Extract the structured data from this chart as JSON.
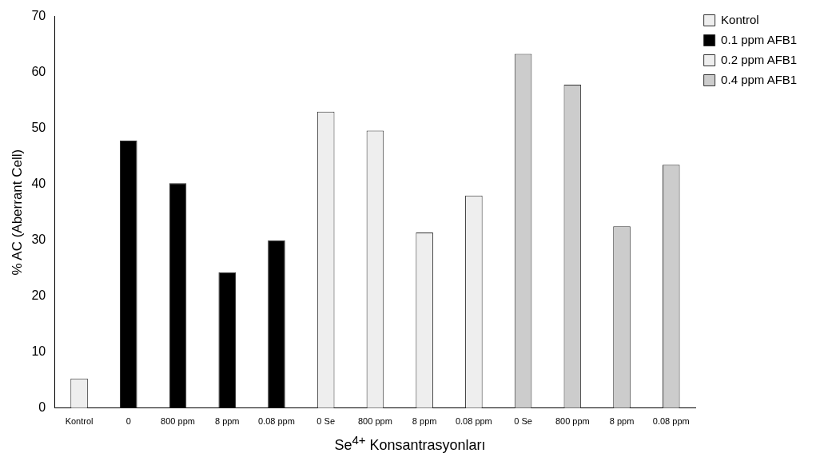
{
  "chart_data": {
    "type": "bar",
    "xlabel": "Se$^{4+}$ Konsantrasyonları",
    "ylabel": "% AC (Aberrant Cell)",
    "categories": [
      "Kontrol",
      "0",
      "800 ppm",
      "8 ppm",
      "0.08 ppm",
      "0 Se",
      "800 ppm",
      "8 ppm",
      "0.08 ppm",
      "0 Se",
      "800 ppm",
      "8 ppm",
      "0.08 ppm"
    ],
    "series": [
      {
        "name": "Kontrol",
        "color": "#eeeeee",
        "values": [
          5.3,
          null,
          null,
          null,
          null,
          null,
          null,
          null,
          null,
          null,
          null,
          null,
          null
        ]
      },
      {
        "name": "0.1 ppm AFB1",
        "color": "#000000",
        "values": [
          null,
          47.8,
          40.2,
          24.3,
          30,
          null,
          null,
          null,
          null,
          null,
          null,
          null,
          null
        ]
      },
      {
        "name": "0.2 ppm AFB1",
        "color": "#eeeeee",
        "values": [
          null,
          null,
          null,
          null,
          null,
          53,
          49.6,
          31.4,
          38,
          null,
          null,
          null,
          null
        ]
      },
      {
        "name": "0.4 ppm AFB1",
        "color": "#cccccc",
        "values": [
          null,
          null,
          null,
          null,
          null,
          null,
          null,
          null,
          null,
          63.3,
          57.8,
          32.5,
          43.5
        ]
      }
    ],
    "ylim": [
      0,
      70
    ],
    "yticks": [
      0,
      10,
      20,
      30,
      40,
      50,
      60,
      70
    ],
    "grid": false,
    "legend": "top right"
  }
}
